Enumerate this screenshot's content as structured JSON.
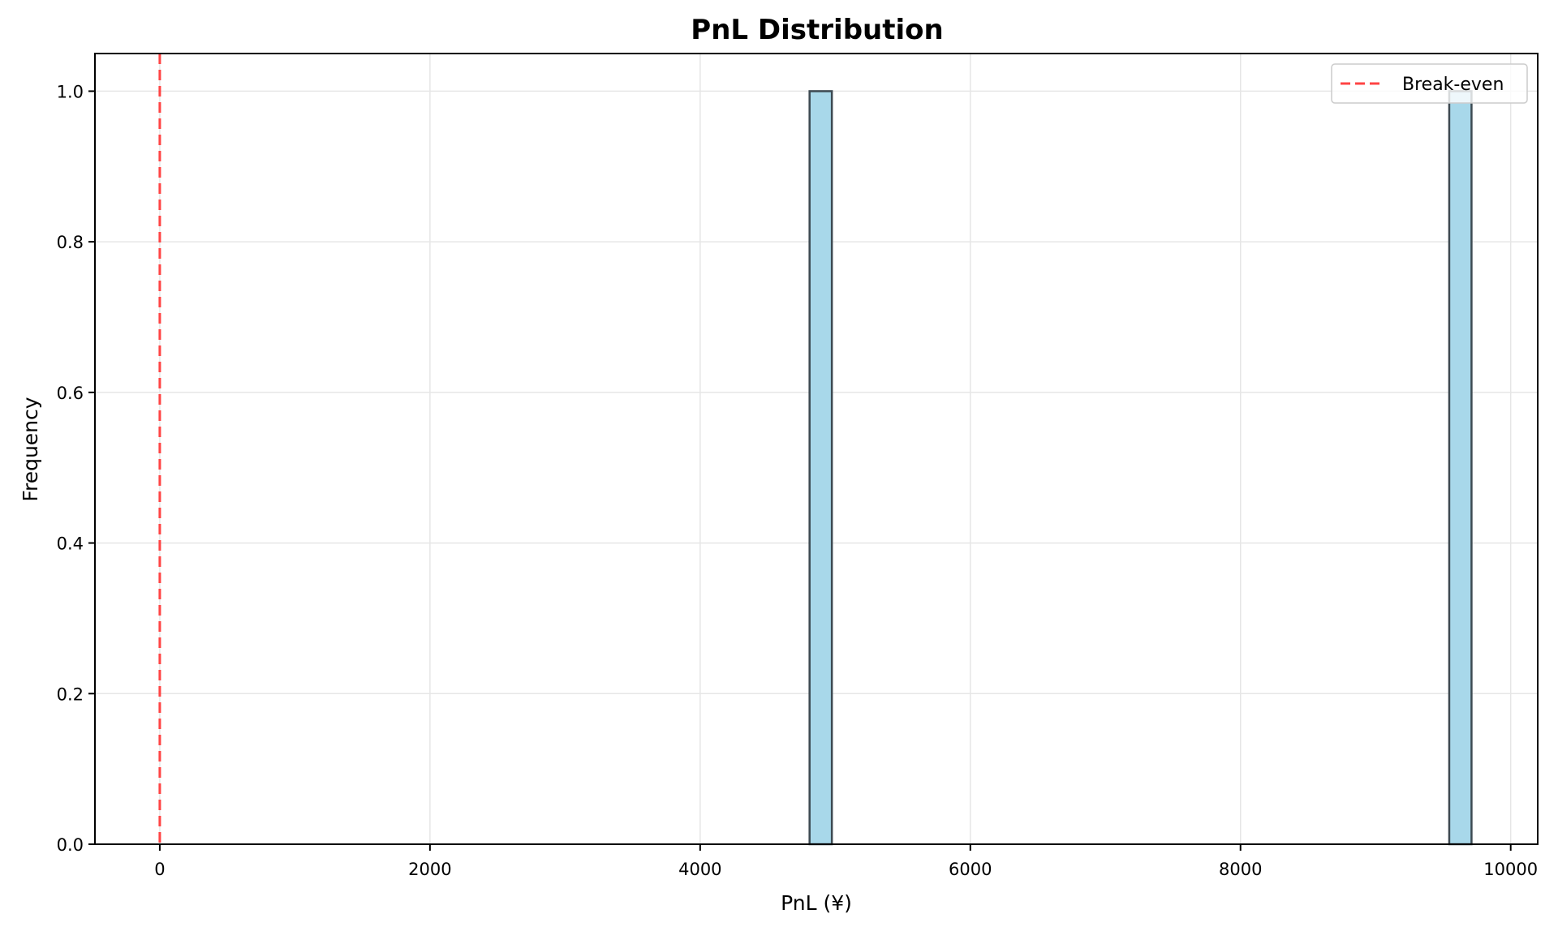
{
  "chart_data": {
    "type": "bar",
    "subtype": "histogram",
    "title": "PnL Distribution",
    "xlabel": "PnL (¥)",
    "ylabel": "Frequency",
    "xlim": [
      -480,
      10200
    ],
    "ylim": [
      0,
      1.05
    ],
    "x_ticks": [
      0,
      2000,
      4000,
      6000,
      8000,
      10000
    ],
    "x_tick_labels": [
      "0",
      "2000",
      "4000",
      "6000",
      "8000",
      "10000"
    ],
    "y_ticks": [
      0.0,
      0.2,
      0.4,
      0.6,
      0.8,
      1.0
    ],
    "y_tick_labels": [
      "0.0",
      "0.2",
      "0.4",
      "0.6",
      "0.8",
      "1.0"
    ],
    "grid": true,
    "bins": [
      {
        "x_start": 4810,
        "x_end": 4975,
        "count": 1
      },
      {
        "x_start": 9545,
        "x_end": 9710,
        "count": 1
      }
    ],
    "reference_lines": [
      {
        "type": "vertical",
        "x": 0,
        "label": "Break-even",
        "style": "dashed",
        "color": "#ff4444"
      }
    ],
    "legend": {
      "position": "upper right",
      "entries": [
        "Break-even"
      ]
    },
    "colors": {
      "bar_fill": "#a8d8ea",
      "bar_edge": "#3d4a52",
      "break_even": "#ff4444",
      "grid": "#e6e6e6"
    }
  }
}
